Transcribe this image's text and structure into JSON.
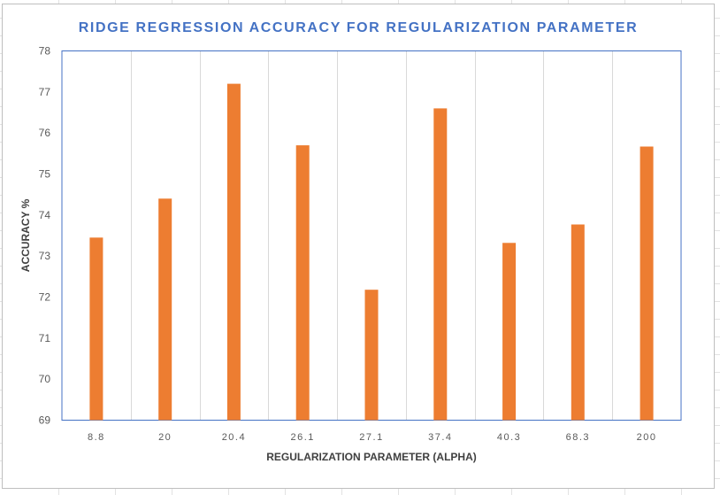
{
  "chart_data": {
    "type": "bar",
    "title": "RIDGE REGRESSION ACCURACY FOR REGULARIZATION PARAMETER",
    "xlabel": "REGULARIZATION PARAMETER (ALPHA)",
    "ylabel": "ACCURACY %",
    "categories": [
      "8.8",
      "20",
      "20.4",
      "26.1",
      "27.1",
      "37.4",
      "40.3",
      "68.3",
      "200"
    ],
    "values": [
      73.45,
      74.4,
      77.2,
      75.7,
      72.18,
      76.6,
      73.32,
      73.77,
      75.67
    ],
    "ylim": [
      69,
      78
    ],
    "yticks": [
      69,
      70,
      71,
      72,
      73,
      74,
      75,
      76,
      77,
      78
    ],
    "grid": "vertical",
    "legend": "none",
    "colors": {
      "bar": "#ED7D31",
      "title": "#4472C4",
      "plot_border": "#4472C4",
      "gridline": "#d9d9d9",
      "axis_text": "#595959",
      "axis_title": "#404040"
    }
  }
}
